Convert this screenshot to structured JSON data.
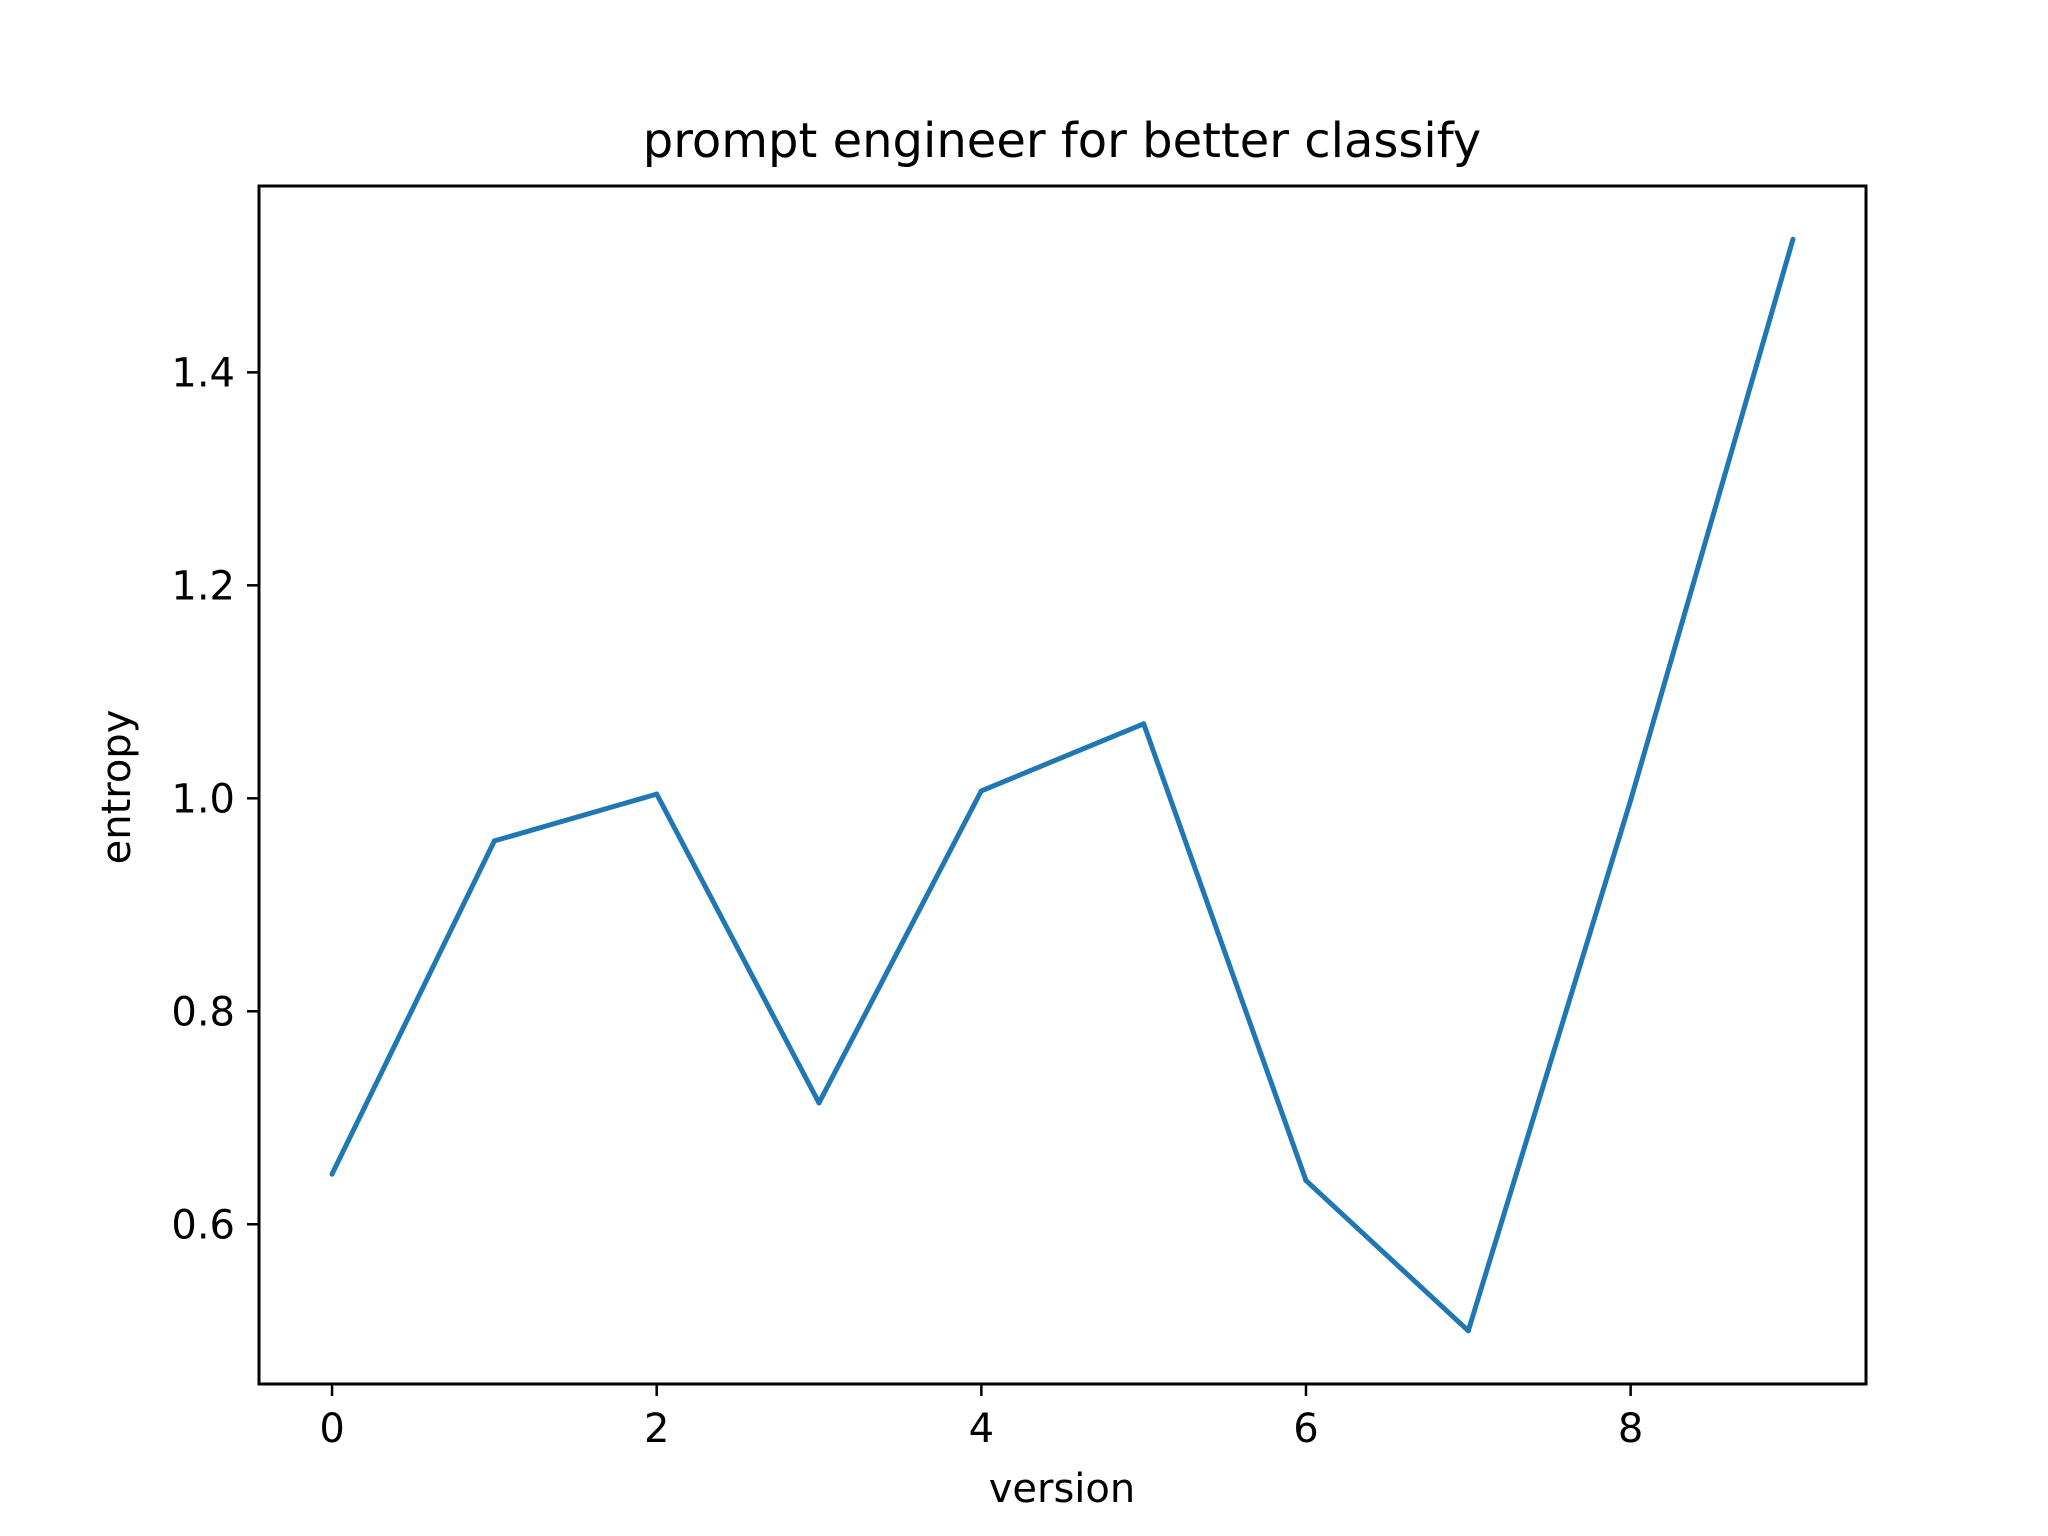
{
  "chart_data": {
    "type": "line",
    "title": "prompt engineer for better classify",
    "xlabel": "version",
    "ylabel": "entropy",
    "xlim": [
      -0.45,
      9.45
    ],
    "ylim": [
      0.45,
      1.575
    ],
    "xticks": [
      0,
      2,
      4,
      6,
      8
    ],
    "xtick_labels": [
      "0",
      "2",
      "4",
      "6",
      "8"
    ],
    "yticks": [
      0.6,
      0.8,
      1.0,
      1.2,
      1.4
    ],
    "ytick_labels": [
      "0.6",
      "0.8",
      "1.0",
      "1.2",
      "1.4"
    ],
    "grid": false,
    "legend": "none",
    "series": [
      {
        "color": "#1f77b4",
        "x": [
          0,
          1,
          2,
          3,
          4,
          5,
          6,
          7,
          8,
          9
        ],
        "y": [
          0.647,
          0.96,
          1.004,
          0.714,
          1.007,
          1.07,
          0.641,
          0.5,
          0.998,
          1.525
        ]
      }
    ]
  }
}
